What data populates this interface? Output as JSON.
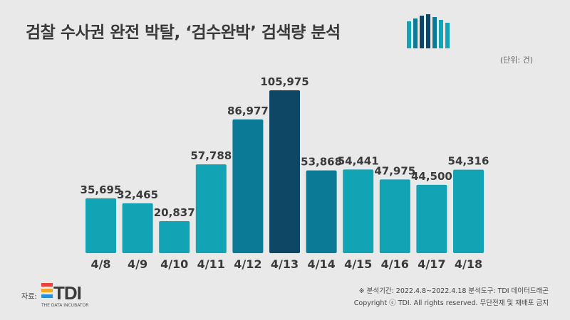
{
  "title": "검찰 수사권 완전 박탈, ‘검수완박’ 검색량 분석",
  "unit": "(단위: 건)",
  "source_label": "자료:",
  "source_logo": {
    "text": "TDI",
    "subtitle": "THE DATA INCUBATOR"
  },
  "footnote_period": "※ 분석기간: 2022.4.8~2022.4.18  분석도구: TDI 데이터드래곤",
  "footnote_copyright": "Copyright ⓒ TDI. All rights reserved. 무단전재 및 재배포 금지",
  "colors": {
    "background": "#e9e9e9",
    "bar_light": "#12a3b5",
    "bar_mid": "#0b7a96",
    "bar_dark": "#0e4766",
    "text": "#3a3a3a"
  },
  "chart_data": {
    "type": "bar",
    "categories": [
      "4/8",
      "4/9",
      "4/10",
      "4/11",
      "4/12",
      "4/13",
      "4/14",
      "4/15",
      "4/16",
      "4/17",
      "4/18"
    ],
    "values": [
      35695,
      32465,
      20837,
      57788,
      86977,
      105975,
      53868,
      54441,
      47975,
      44500,
      54316
    ],
    "value_labels": [
      "35,695",
      "32,465",
      "20,837",
      "57,788",
      "86,977",
      "105,975",
      "53,868",
      "54,441",
      "47,975",
      "44,500",
      "54,316"
    ],
    "bar_color_keys": [
      "bar_light",
      "bar_light",
      "bar_light",
      "bar_light",
      "bar_mid",
      "bar_dark",
      "bar_mid",
      "bar_light",
      "bar_light",
      "bar_light",
      "bar_light"
    ],
    "ylim": [
      0,
      105975
    ],
    "grid": false,
    "legend": "none"
  }
}
